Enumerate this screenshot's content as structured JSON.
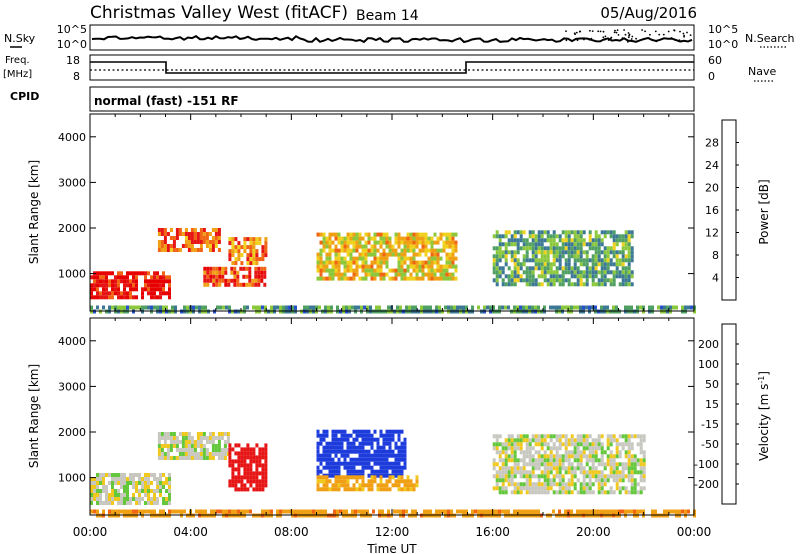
{
  "header": {
    "station": "Christmas Valley West (fitACF)",
    "beam": "Beam 14",
    "date": "05/Aug/2016"
  },
  "status_panels": {
    "noise": {
      "left_label": "N.Sky",
      "right_label": "N.Search",
      "left_ticks": [
        "10^5",
        "10^0"
      ],
      "right_ticks": [
        "10^5",
        "10^0"
      ]
    },
    "freq": {
      "left_label_top": "Freq.",
      "left_label_bottom": "[MHz]",
      "right_label": "Nave",
      "left_ticks": [
        "18",
        "8"
      ],
      "right_ticks": [
        "60",
        "0"
      ]
    },
    "cpid": {
      "label": "CPID",
      "text": "normal (fast) -151 RF"
    }
  },
  "chart_data": [
    {
      "type": "heatmap",
      "name": "power",
      "ylabel": "Slant Range [km]",
      "xlabel": "Time UT",
      "x_ticks": [
        "00:00",
        "04:00",
        "08:00",
        "12:00",
        "16:00",
        "20:00",
        "00:00"
      ],
      "xlim_hours": [
        0,
        24
      ],
      "y_ticks": [
        1000,
        2000,
        3000,
        4000
      ],
      "ylim_km": [
        180,
        4500
      ],
      "colorbar": {
        "label": "Power [dB]",
        "ticks": [
          "4",
          "8",
          "12",
          "16",
          "20",
          "24",
          "28"
        ],
        "range": [
          0,
          30
        ],
        "colors": [
          "#1c1cf0",
          "#2850c8",
          "#3c7896",
          "#50a064",
          "#8cc83c",
          "#f0d21e",
          "#f0a014",
          "#f06414",
          "#e61414",
          "#e60000"
        ]
      },
      "regions": [
        {
          "t0": 0.0,
          "t1": 3.2,
          "r0": 500,
          "r1": 1050,
          "level": 27
        },
        {
          "t0": 2.7,
          "t1": 5.2,
          "r0": 1550,
          "r1": 2000,
          "level": 22
        },
        {
          "t0": 4.5,
          "t1": 7.0,
          "r0": 750,
          "r1": 1150,
          "level": 24
        },
        {
          "t0": 5.5,
          "t1": 7.0,
          "r0": 1200,
          "r1": 1800,
          "level": 21
        },
        {
          "t0": 9.0,
          "t1": 14.5,
          "r0": 850,
          "r1": 1900,
          "level": 17
        },
        {
          "t0": 16.0,
          "t1": 21.5,
          "r0": 750,
          "r1": 1950,
          "level": 11
        },
        {
          "t0": 0.0,
          "t1": 24.0,
          "r0": 180,
          "r1": 300,
          "level": 10
        }
      ]
    },
    {
      "type": "heatmap",
      "name": "velocity",
      "ylabel": "Slant Range [km]",
      "xlabel": "Time UT",
      "x_ticks": [
        "00:00",
        "04:00",
        "08:00",
        "12:00",
        "16:00",
        "20:00",
        "00:00"
      ],
      "xlim_hours": [
        0,
        24
      ],
      "y_ticks": [
        1000,
        2000,
        3000,
        4000
      ],
      "ylim_km": [
        180,
        4500
      ],
      "colorbar": {
        "label": "Velocity [m s",
        "label_sup": "-1",
        "label_end": "]",
        "ticks": [
          "200",
          "100",
          "50",
          "15",
          "-15",
          "-50",
          "-100",
          "-200"
        ],
        "colors": [
          "#1e3cdc",
          "#285ab4",
          "#28a064",
          "#64c83c",
          "#c8c8c0",
          "#f0c81e",
          "#f0a014",
          "#f06414",
          "#e61414"
        ]
      },
      "regions": [
        {
          "t0": 0.0,
          "t1": 3.2,
          "r0": 400,
          "r1": 1100,
          "level": 0
        },
        {
          "t0": 2.7,
          "t1": 5.5,
          "r0": 1450,
          "r1": 2000,
          "level": 0
        },
        {
          "t0": 5.5,
          "t1": 7.0,
          "r0": 700,
          "r1": 1750,
          "level": -180
        },
        {
          "t0": 9.0,
          "t1": 12.5,
          "r0": 1000,
          "r1": 2050,
          "level": 200
        },
        {
          "t0": 9.0,
          "t1": 13.0,
          "r0": 700,
          "r1": 1050,
          "level": -40
        },
        {
          "t0": 16.0,
          "t1": 22.0,
          "r0": 650,
          "r1": 1950,
          "level": 0
        },
        {
          "t0": 0.0,
          "t1": 24.0,
          "r0": 180,
          "r1": 300,
          "level": -60
        }
      ]
    }
  ]
}
